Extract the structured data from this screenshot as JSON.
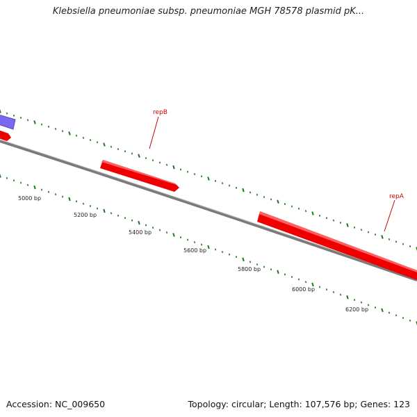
{
  "title": "Klebsiella pneumoniae subsp. pneumoniae MGH 78578 plasmid pK...",
  "footer": {
    "accession": "Accession: NC_009650",
    "summary": "Topology: circular; Length: 107,576 bp; Genes: 123"
  },
  "position_labels": [
    "5000 bp",
    "5200 bp",
    "5400 bp",
    "5600 bp",
    "5800 bp",
    "6000 bp",
    "6200 bp"
  ],
  "genes": [
    {
      "name": "repB",
      "strand": "forward",
      "color": "#ee0000"
    },
    {
      "name": "repA",
      "strand": "forward",
      "color": "#ee0000"
    }
  ],
  "colors": {
    "backbone": "#808080",
    "gene_cds": "#ee0000",
    "gene_other": "#7b68ee",
    "gc_ticks": "#1a7a1a",
    "label_line": "#cc0000"
  }
}
